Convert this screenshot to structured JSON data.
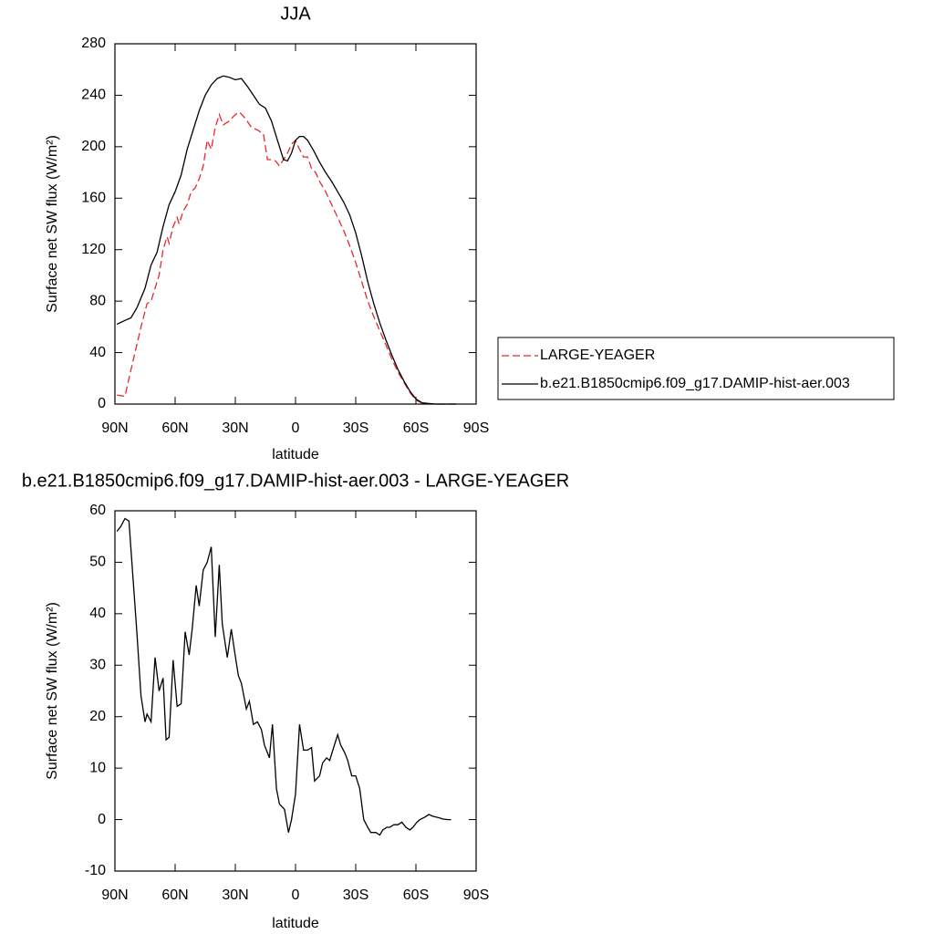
{
  "chart_data": [
    {
      "type": "line",
      "title": "JJA",
      "xlabel": "latitude",
      "ylabel": "Surface net SW flux (W/m²)",
      "xlim": [
        90,
        -90
      ],
      "xticks": [
        {
          "value": 90,
          "label": "90N"
        },
        {
          "value": 60,
          "label": "60N"
        },
        {
          "value": 30,
          "label": "30N"
        },
        0,
        {
          "value": -30,
          "label": "30S"
        },
        {
          "value": -60,
          "label": "60S"
        },
        {
          "value": -90,
          "label": "90S"
        }
      ],
      "ylim": [
        0,
        280
      ],
      "yticks": [
        0,
        40,
        80,
        120,
        160,
        200,
        240,
        280
      ],
      "legend": "right",
      "series": [
        {
          "name": "LARGE-YEAGER",
          "color": "#e8282b",
          "linestyle": "dashed",
          "x": [
            89,
            85,
            83,
            80,
            77,
            74,
            72,
            70,
            68,
            66,
            64,
            63,
            61,
            59,
            58,
            56,
            54,
            52,
            50,
            48,
            46,
            44,
            42,
            40,
            38,
            36,
            33,
            30,
            28,
            25,
            22,
            19,
            16,
            14,
            12,
            10,
            8,
            6,
            4,
            2,
            0,
            -2,
            -4,
            -6,
            -8,
            -10,
            -12,
            -15,
            -18,
            -21,
            -24,
            -27,
            -30,
            -33,
            -36,
            -39,
            -42,
            -45,
            -48,
            -51,
            -54,
            -57,
            -60,
            -63,
            -66,
            -70,
            -78,
            -80
          ],
          "values": [
            7,
            6,
            20,
            40,
            60,
            78,
            80,
            90,
            100,
            120,
            130,
            125,
            138,
            145,
            140,
            150,
            155,
            165,
            168,
            175,
            185,
            205,
            198,
            215,
            225,
            217,
            220,
            225,
            227,
            222,
            215,
            213,
            210,
            190,
            190,
            189,
            185,
            190,
            195,
            202,
            205,
            198,
            192,
            192,
            183,
            180,
            173,
            165,
            155,
            145,
            135,
            123,
            110,
            95,
            80,
            68,
            57,
            46,
            35,
            25,
            17,
            9,
            3,
            1,
            0,
            0,
            0,
            0
          ]
        },
        {
          "name": "b.e21.B1850cmip6.f09_g17.DAMIP-hist-aer.003",
          "color": "#000000",
          "linestyle": "solid",
          "x": [
            89,
            85,
            82,
            79,
            75,
            72,
            69,
            66,
            63,
            60,
            57,
            54,
            51,
            48,
            45,
            42,
            39,
            36,
            33,
            30,
            27,
            24,
            21,
            18,
            15,
            12,
            9,
            6,
            4,
            2,
            0,
            -2,
            -4,
            -6,
            -9,
            -12,
            -15,
            -18,
            -21,
            -24,
            -27,
            -30,
            -33,
            -36,
            -39,
            -42,
            -45,
            -48,
            -51,
            -54,
            -57,
            -60,
            -63,
            -66,
            -70,
            -78,
            -80
          ],
          "values": [
            62,
            65,
            67,
            75,
            90,
            108,
            118,
            138,
            155,
            165,
            178,
            198,
            213,
            228,
            240,
            248,
            253,
            255,
            254,
            252,
            253,
            247,
            240,
            233,
            230,
            220,
            205,
            190,
            189,
            195,
            205,
            208,
            208,
            205,
            197,
            188,
            180,
            173,
            165,
            157,
            147,
            133,
            115,
            95,
            78,
            63,
            50,
            38,
            27,
            18,
            10,
            4,
            1,
            0.5,
            0,
            0,
            0
          ]
        }
      ]
    },
    {
      "type": "line",
      "title": "b.e21.B1850cmip6.f09_g17.DAMIP-hist-aer.003 - LARGE-YEAGER",
      "xlabel": "latitude",
      "ylabel": "Surface net SW flux (W/m²)",
      "xlim": [
        90,
        -90
      ],
      "xticks": [
        {
          "value": 90,
          "label": "90N"
        },
        {
          "value": 60,
          "label": "60N"
        },
        {
          "value": 30,
          "label": "30N"
        },
        0,
        {
          "value": -30,
          "label": "30S"
        },
        {
          "value": -60,
          "label": "60S"
        },
        {
          "value": -90,
          "label": "90S"
        }
      ],
      "ylim": [
        -10,
        60
      ],
      "yticks": [
        -10,
        0,
        10,
        20,
        30,
        40,
        50,
        60
      ],
      "series": [
        {
          "color": "#000000",
          "linestyle": "solid",
          "x": [
            89,
            87,
            85,
            83,
            81,
            79,
            77,
            75,
            74,
            72,
            70,
            68,
            66,
            64.5,
            63,
            61,
            59,
            57,
            55,
            53,
            51.5,
            49.5,
            48,
            46,
            44,
            42,
            40,
            38,
            36.5,
            34,
            32,
            30.5,
            28.5,
            27,
            24.5,
            23,
            21,
            19,
            17,
            15.5,
            13,
            11.5,
            9.5,
            8,
            5.5,
            3.5,
            2,
            0,
            -2,
            -4,
            -6,
            -8,
            -9.5,
            -12,
            -13.5,
            -15.5,
            -17,
            -19,
            -21,
            -22.5,
            -24.5,
            -26,
            -28,
            -30,
            -32,
            -34,
            -36,
            -37.5,
            -40,
            -42,
            -43.5,
            -45.5,
            -47,
            -49,
            -51,
            -53,
            -55,
            -57,
            -58.5,
            -60.5,
            -62,
            -64.5,
            -66.5,
            -68,
            -70,
            -72,
            -73.5,
            -76,
            -77.5
          ],
          "values": [
            56,
            57,
            58.5,
            58,
            47,
            36,
            24,
            19,
            20.5,
            19,
            31.5,
            25,
            27.5,
            15.5,
            16,
            31,
            22,
            22.5,
            36.5,
            32,
            37,
            45.5,
            41.5,
            48.5,
            50,
            53,
            35.5,
            49.5,
            38,
            31.5,
            37,
            33,
            28,
            26.5,
            21.5,
            23,
            18.5,
            19,
            17.5,
            14.5,
            12,
            18.5,
            6,
            3,
            2,
            -2.5,
            0,
            5,
            18.5,
            13.5,
            13.5,
            14,
            7.5,
            8.5,
            11,
            12,
            11.5,
            14,
            16.5,
            14.5,
            13,
            11.5,
            8.5,
            8.5,
            6,
            0,
            -1.5,
            -2.5,
            -2.5,
            -3,
            -2,
            -1.5,
            -1.5,
            -1,
            -1,
            -0.5,
            -1.5,
            -2,
            -1.5,
            -0.5,
            0,
            0.5,
            1,
            0.7,
            0.5,
            0.3,
            0.1,
            0,
            0
          ]
        }
      ]
    }
  ]
}
